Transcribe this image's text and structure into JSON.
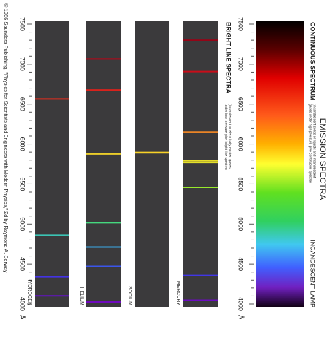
{
  "header": {
    "title": "EMISSION SPECTRA"
  },
  "continuous": {
    "label": "CONTINUOUS SPECTRUM",
    "note": [
      "(incandescent solids or liquids and incandescent",
      "gases under high pressure give continuous spectra)"
    ],
    "source": "INCANDESCENT LAMP"
  },
  "bright_line": {
    "label": "BRIGHT LINE SPECTRA",
    "note": [
      "(incandescent or electrically excited gases",
      "under low pressure give bright line spectra)"
    ]
  },
  "axis": {
    "lim": [
      7500,
      4000
    ],
    "ticks": [
      7500,
      7000,
      6500,
      6000,
      5500,
      5000,
      4500,
      4000
    ],
    "unit": "Å"
  },
  "spectra": [
    {
      "name": "MERCURY",
      "lines": [
        4047,
        4358,
        5461,
        5770,
        5791,
        6150,
        6907,
        7300
      ]
    },
    {
      "name": "SODIUM",
      "lines": [
        5890,
        5896
      ]
    },
    {
      "name": "HELIUM",
      "lines": [
        4026,
        4471,
        4713,
        5016,
        5876,
        6678,
        7065
      ]
    },
    {
      "name": "HYDROGEN",
      "lines": [
        4102,
        4340,
        4861,
        6563
      ]
    }
  ],
  "credit": "© 1986 Saunders Publishing, \"Physics for Scientists and Engineers with Modern Physics,\" 2d by Raymond A. Serway"
}
